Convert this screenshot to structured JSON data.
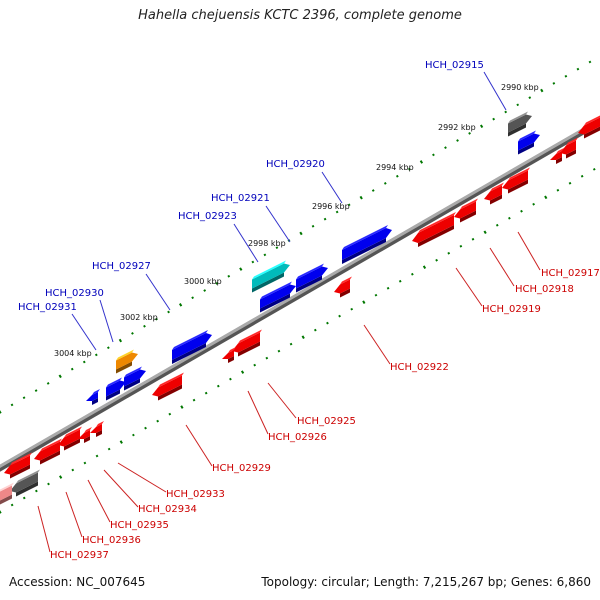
{
  "title": "Hahella chejuensis KCTC 2396, complete genome",
  "footer": {
    "accession": "Accession: NC_007645",
    "summary": "Topology: circular; Length: 7,215,267 bp; Genes: 6,860"
  },
  "colors": {
    "forward_gene": "#0000ee",
    "reverse_gene": "#ee0000",
    "pseudo_gene": "#555555",
    "rna_gene": "#00bbbb",
    "other_gene": "#ee8800",
    "forward_label": "#0000bb",
    "reverse_label": "#cc0000",
    "tick": "#007700",
    "backbone": "#777777"
  },
  "kbp_marks": [
    "2990 kbp",
    "2992 kbp",
    "2994 kbp",
    "2996 kbp",
    "2998 kbp",
    "3000 kbp",
    "3002 kbp",
    "3004 kbp"
  ],
  "forward_labels": [
    "HCH_02915",
    "HCH_02920",
    "HCH_02921",
    "HCH_02923",
    "HCH_02927",
    "HCH_02930",
    "HCH_02931"
  ],
  "reverse_labels": [
    "HCH_02917",
    "HCH_02918",
    "HCH_02919",
    "HCH_02922",
    "HCH_02925",
    "HCH_02926",
    "HCH_02929",
    "HCH_02933",
    "HCH_02934",
    "HCH_02935",
    "HCH_02936",
    "HCH_02937"
  ]
}
